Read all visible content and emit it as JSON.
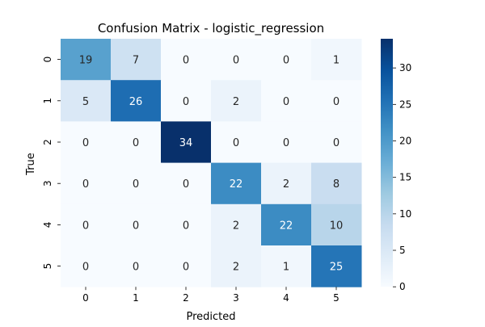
{
  "chart_data": {
    "type": "heatmap",
    "title": "Confusion Matrix - logistic_regression",
    "xlabel": "Predicted",
    "ylabel": "True",
    "x_labels": [
      "0",
      "1",
      "2",
      "3",
      "4",
      "5"
    ],
    "y_labels": [
      "0",
      "1",
      "2",
      "3",
      "4",
      "5"
    ],
    "matrix": [
      [
        19,
        7,
        0,
        0,
        0,
        1
      ],
      [
        5,
        26,
        0,
        2,
        0,
        0
      ],
      [
        0,
        0,
        34,
        0,
        0,
        0
      ],
      [
        0,
        0,
        0,
        22,
        2,
        8
      ],
      [
        0,
        0,
        0,
        2,
        22,
        10
      ],
      [
        0,
        0,
        0,
        2,
        1,
        25
      ]
    ],
    "colorbar": {
      "vmin": 0,
      "vmax": 34,
      "ticks": [
        0,
        5,
        10,
        15,
        20,
        25,
        30
      ],
      "colormap": "Blues"
    }
  }
}
